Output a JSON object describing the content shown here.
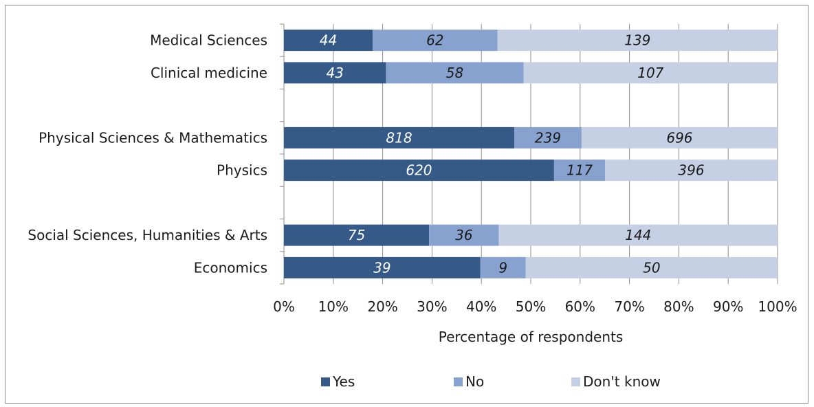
{
  "chart_data": {
    "type": "bar",
    "orientation": "horizontal",
    "stacked": "percent",
    "title": "",
    "xlabel": "Percentage of respondents",
    "ylabel": "",
    "xlim": [
      0,
      100
    ],
    "x_ticks": [
      "0%",
      "10%",
      "20%",
      "30%",
      "40%",
      "50%",
      "60%",
      "70%",
      "80%",
      "90%",
      "100%"
    ],
    "grid": true,
    "legend_position": "bottom",
    "categories": [
      "Medical Sciences",
      "Clinical medicine",
      "",
      "Physical Sciences & Mathematics",
      "Physics",
      "",
      "Social Sciences, Humanities & Arts",
      "Economics"
    ],
    "series": [
      {
        "name": "Yes",
        "color": "#355a88",
        "label_color": "#ffffff",
        "values": [
          44,
          43,
          null,
          818,
          620,
          null,
          75,
          39
        ]
      },
      {
        "name": "No",
        "color": "#87a2ce",
        "label_color": "#1a1a1a",
        "values": [
          62,
          58,
          null,
          239,
          117,
          null,
          36,
          9
        ]
      },
      {
        "name": "Don't know",
        "color": "#c5d0e4",
        "label_color": "#1a1a1a",
        "values": [
          139,
          107,
          null,
          696,
          396,
          null,
          144,
          50
        ]
      }
    ]
  }
}
